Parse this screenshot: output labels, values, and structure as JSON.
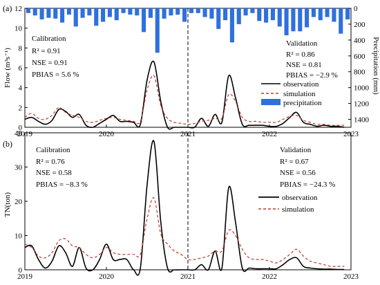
{
  "chart_data": [
    {
      "panel_label": "(a)",
      "type": "line",
      "xlabel": "",
      "ylabel": "Flow (m³s⁻¹)",
      "y2label": "Precipitation (mm)",
      "xticks": [
        "2019",
        "2020",
        "2021",
        "2022",
        "2023"
      ],
      "ylim": [
        0,
        12
      ],
      "yticks": [
        0,
        2,
        4,
        6,
        8,
        10,
        12
      ],
      "y2lim": [
        0,
        1500
      ],
      "y2ticks": [
        0,
        200,
        400,
        600,
        800,
        1000,
        1200,
        1400
      ],
      "y2_inverted": true,
      "split_x": 24,
      "calibration": {
        "title": "Calibration",
        "r2": "R² = 0.91",
        "nse": "NSE = 0.91",
        "pbias": "PBIAS = 5.6 %"
      },
      "validation": {
        "title": "Validation",
        "r2": "R² = 0.86",
        "nse": "NSE = 0.81",
        "pbias": "PBIAS = −2.9 %"
      },
      "legend": {
        "observation": "observation",
        "simulation": "simulation",
        "precipitation": "precipitation"
      },
      "x": [
        0,
        1,
        2,
        3,
        4,
        5,
        6,
        7,
        8,
        9,
        10,
        11,
        12,
        13,
        14,
        15,
        16,
        17,
        18,
        19,
        20,
        21,
        22,
        23,
        24,
        25,
        26,
        27,
        28,
        29,
        30,
        31,
        32,
        33,
        34,
        35,
        36,
        37,
        38,
        39,
        40,
        41,
        42,
        43,
        44,
        45,
        46,
        47
      ],
      "series": [
        {
          "name": "observation",
          "color": "#000000",
          "dash": "",
          "values": [
            0.8,
            1.0,
            0.6,
            0.3,
            0.7,
            1.8,
            1.6,
            1.0,
            1.3,
            0.2,
            0.0,
            0.4,
            0.8,
            1.2,
            0.6,
            0.6,
            0.5,
            0.3,
            4.8,
            6.6,
            2.6,
            0.0,
            0.0,
            0.0,
            0.0,
            0.0,
            0.9,
            0.1,
            1.3,
            0.5,
            5.2,
            3.0,
            0.3,
            0.2,
            0.2,
            0.2,
            0.1,
            0.1,
            0.4,
            1.0,
            1.5,
            0.5,
            0.3,
            0.1,
            0.2,
            0.1,
            0.1,
            0.0
          ]
        },
        {
          "name": "simulation",
          "color": "#c0392b",
          "dash": "4,3",
          "values": [
            1.0,
            1.4,
            0.9,
            0.8,
            1.2,
            2.0,
            1.5,
            1.2,
            1.0,
            0.6,
            0.5,
            0.7,
            0.9,
            1.0,
            0.8,
            0.7,
            0.6,
            0.6,
            3.8,
            5.2,
            2.2,
            0.9,
            0.5,
            0.4,
            0.3,
            0.4,
            0.6,
            0.7,
            0.9,
            0.9,
            3.3,
            2.6,
            1.0,
            0.6,
            0.6,
            0.5,
            0.5,
            0.5,
            0.8,
            1.1,
            1.2,
            0.7,
            0.5,
            0.3,
            0.3,
            0.2,
            0.2,
            0.2
          ]
        }
      ],
      "precipitation": {
        "name": "precipitation",
        "color": "#2f6fe0",
        "values": [
          60,
          90,
          140,
          120,
          130,
          180,
          80,
          230,
          120,
          90,
          220,
          170,
          110,
          150,
          60,
          80,
          90,
          300,
          120,
          560,
          130,
          90,
          80,
          170,
          60,
          60,
          110,
          130,
          260,
          150,
          430,
          200,
          90,
          60,
          160,
          180,
          150,
          230,
          340,
          290,
          290,
          240,
          110,
          150,
          110,
          170,
          320,
          140
        ]
      }
    },
    {
      "panel_label": "(b)",
      "type": "line",
      "xlabel": "",
      "ylabel": "TN(ton)",
      "xticks": [
        "2019",
        "2020",
        "2021",
        "2022",
        "2023"
      ],
      "ylim": [
        0,
        40
      ],
      "yticks": [
        0,
        10,
        20,
        30,
        40
      ],
      "split_x": 24,
      "calibration": {
        "title": "Calibration",
        "r2": "R² = 0.76",
        "nse": "NSE = 0.58",
        "pbias": "PBIAS = −8.3 %"
      },
      "validation": {
        "title": "Validation",
        "r2": "R² = 0.67",
        "nse": "NSE = 0.56",
        "pbias": "PBIAS = −24.3 %"
      },
      "legend": {
        "observation": "observation",
        "simulation": "simulation"
      },
      "x": [
        0,
        1,
        2,
        3,
        4,
        5,
        6,
        7,
        8,
        9,
        10,
        11,
        12,
        13,
        14,
        15,
        16,
        17,
        18,
        19,
        20,
        21,
        22,
        23,
        24,
        25,
        26,
        27,
        28,
        29,
        30,
        31,
        32,
        33,
        34,
        35,
        36,
        37,
        38,
        39,
        40,
        41,
        42,
        43,
        44,
        45,
        46,
        47
      ],
      "series": [
        {
          "name": "observation",
          "color": "#000000",
          "dash": "",
          "values": [
            6.5,
            7.0,
            3.0,
            0.5,
            2.5,
            7.0,
            5.0,
            1.0,
            6.5,
            0.5,
            0.0,
            3.0,
            7.5,
            3.0,
            3.0,
            3.0,
            0.0,
            0.5,
            25.0,
            37.5,
            14.0,
            0.5,
            0.0,
            0.0,
            0.0,
            0.0,
            1.5,
            0.0,
            5.5,
            0.5,
            24.0,
            14.0,
            0.5,
            0.5,
            0.3,
            0.3,
            0.3,
            0.3,
            1.5,
            3.0,
            3.5,
            1.0,
            0.5,
            0.3,
            0.2,
            0.2,
            0.1,
            0.1
          ]
        },
        {
          "name": "simulation",
          "color": "#c0392b",
          "dash": "4,3",
          "values": [
            7.5,
            6.5,
            4.0,
            3.5,
            5.0,
            8.5,
            9.0,
            7.0,
            6.5,
            4.5,
            3.5,
            4.5,
            6.5,
            5.0,
            4.5,
            4.5,
            4.5,
            4.5,
            15.0,
            21.0,
            10.5,
            7.5,
            5.5,
            4.5,
            3.0,
            3.0,
            3.5,
            4.0,
            5.5,
            5.5,
            11.5,
            10.0,
            6.0,
            3.5,
            3.0,
            3.0,
            2.5,
            2.0,
            3.0,
            4.5,
            6.0,
            4.0,
            2.5,
            2.0,
            1.5,
            1.0,
            1.0,
            1.0
          ]
        }
      ]
    }
  ]
}
